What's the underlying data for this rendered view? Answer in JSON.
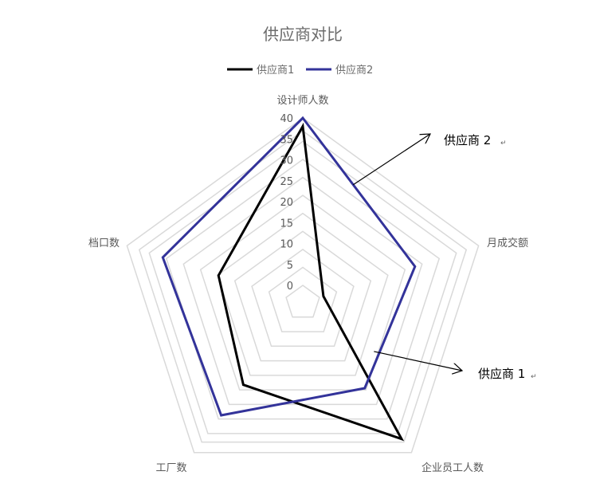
{
  "chart_data": {
    "type": "radar",
    "title": "供应商对比",
    "axes": [
      "设计师人数",
      "月成交额",
      "企业员工人数",
      "工厂数",
      "档口数"
    ],
    "radial_ticks": [
      "0",
      "5",
      "10",
      "15",
      "20",
      "25",
      "30",
      "35",
      "40"
    ],
    "rlim": [
      0,
      40
    ],
    "grid": true,
    "legend_position": "top",
    "series": [
      {
        "name": "供应商1",
        "values": [
          38,
          1,
          36,
          20,
          17
        ],
        "color": "#000000"
      },
      {
        "name": "供应商2",
        "values": [
          40,
          24,
          21,
          29,
          31
        ],
        "color": "#33339a"
      }
    ],
    "annotations": [
      {
        "text": "供应商 2",
        "mark": "↵",
        "points_to": "供应商2"
      },
      {
        "text": "供应商 1",
        "mark": "↵",
        "points_to": "供应商1"
      }
    ]
  }
}
